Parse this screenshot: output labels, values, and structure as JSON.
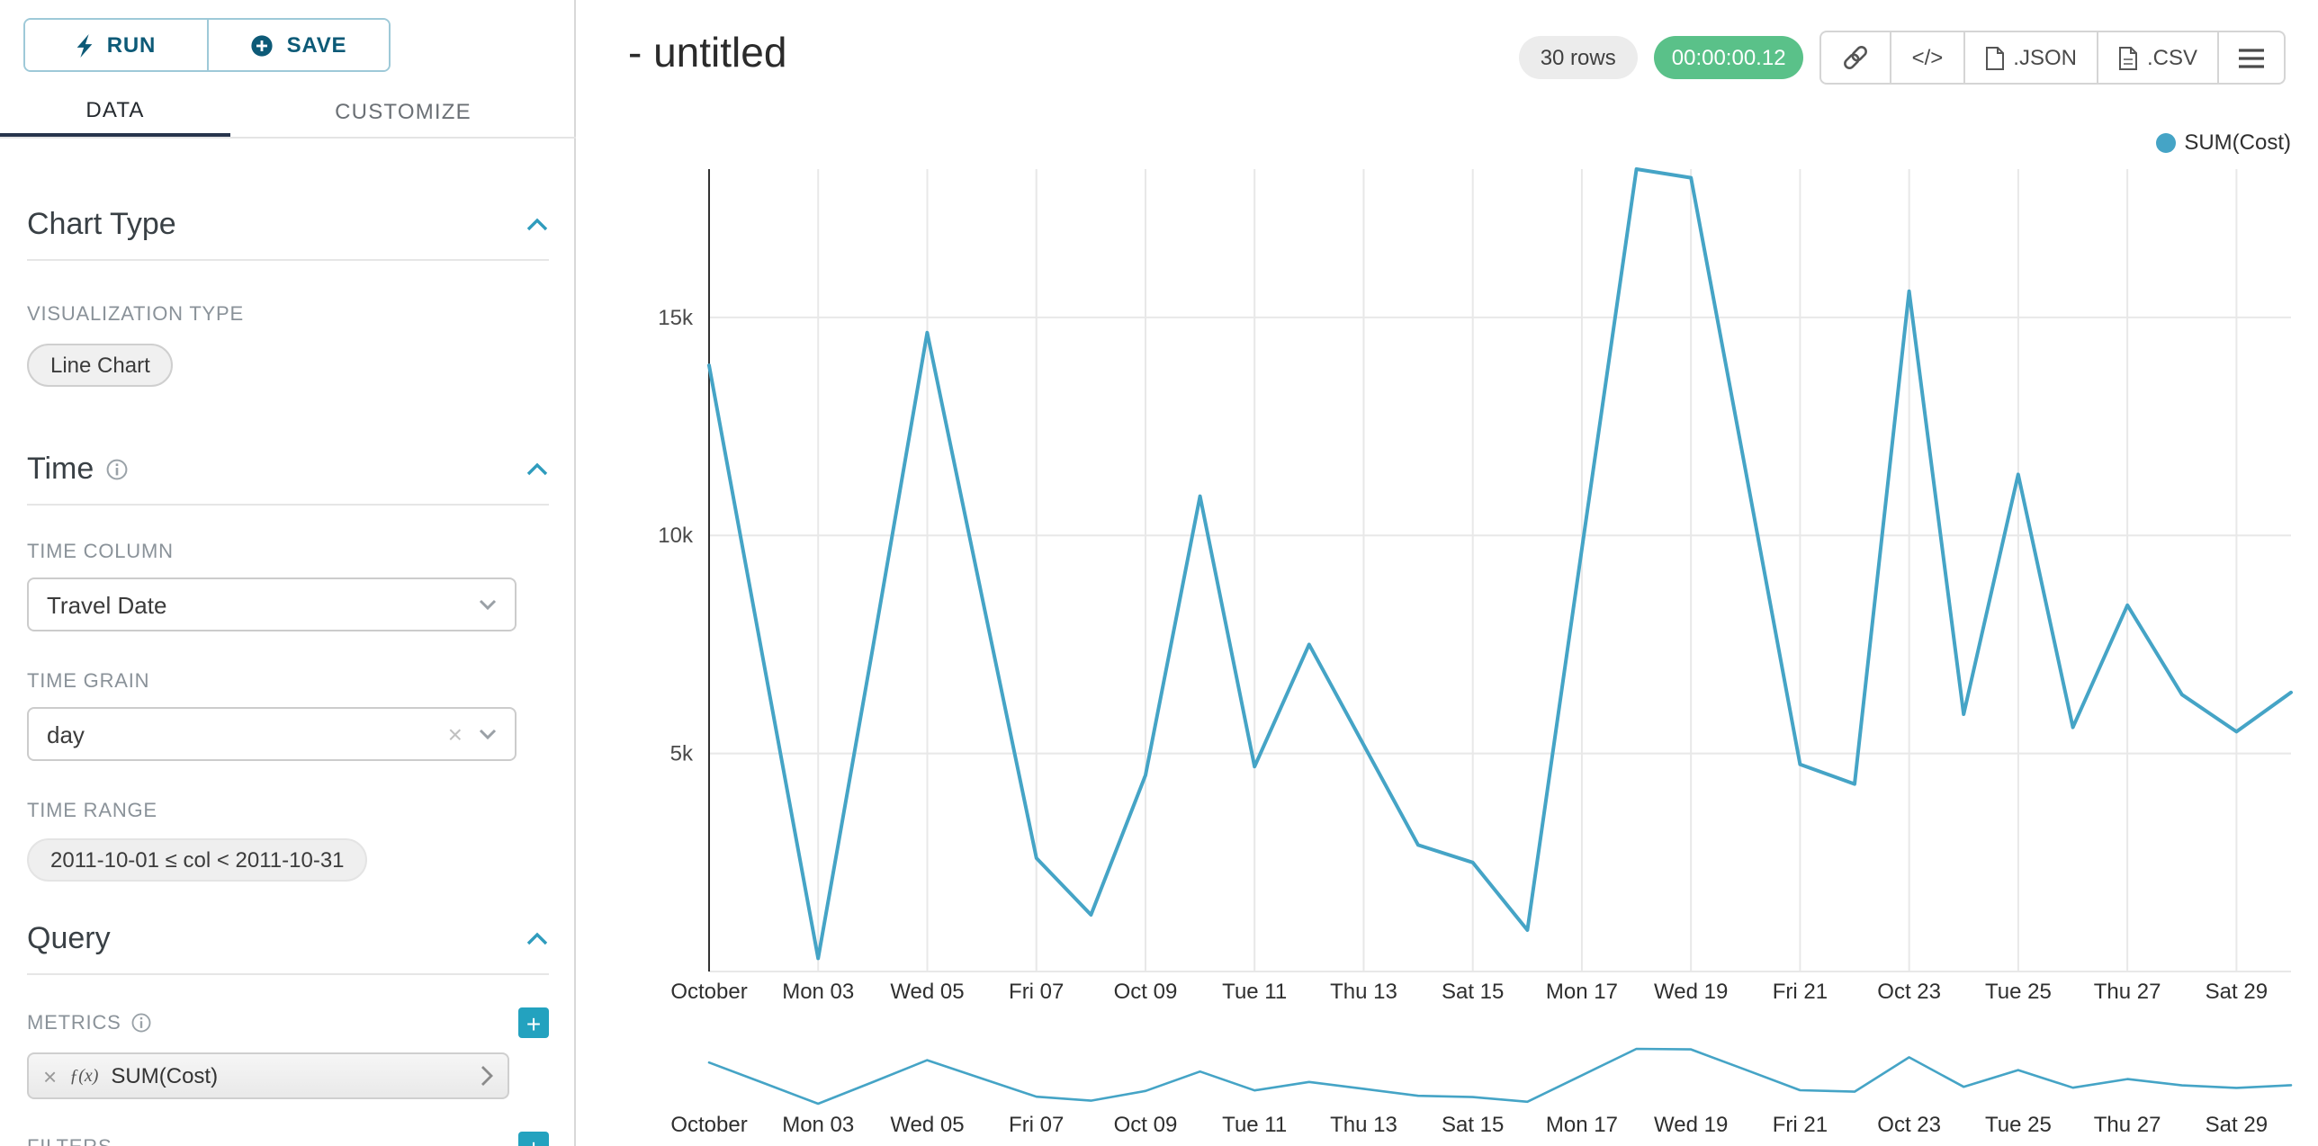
{
  "colors": {
    "accent": "#23a2bf",
    "line": "#45a4c6",
    "timer_green": "#5ac189",
    "run_save_text": "#0d5a77",
    "tab_underline": "#27344c"
  },
  "sidebar": {
    "run_label": "RUN",
    "save_label": "SAVE",
    "tabs": {
      "data": "DATA",
      "customize": "CUSTOMIZE"
    },
    "chart_type": {
      "title": "Chart Type",
      "viz_label": "VISUALIZATION TYPE",
      "viz_value": "Line Chart"
    },
    "time": {
      "title": "Time",
      "column_label": "TIME COLUMN",
      "column_value": "Travel Date",
      "grain_label": "TIME GRAIN",
      "grain_value": "day",
      "range_label": "TIME RANGE",
      "range_value": "2011-10-01 ≤ col < 2011-10-31"
    },
    "query": {
      "title": "Query",
      "metrics_label": "METRICS",
      "metric_fx": "ƒ(x)",
      "metric_value": "SUM(Cost)",
      "filters_label": "FILTERS"
    }
  },
  "header": {
    "title": "- untitled",
    "rows_badge": "30 rows",
    "timer": "00:00:00.12",
    "code_button": "</>",
    "json_button": ".JSON",
    "csv_button": ".CSV"
  },
  "chart": {
    "legend_label": "SUM(Cost)"
  },
  "chart_data": {
    "type": "line",
    "title": "- untitled",
    "xlabel": "",
    "ylabel": "",
    "legend": [
      "SUM(Cost)"
    ],
    "legend_position": "top-right",
    "grid": true,
    "x": [
      "2011-10-01",
      "2011-10-02",
      "2011-10-03",
      "2011-10-04",
      "2011-10-05",
      "2011-10-06",
      "2011-10-07",
      "2011-10-08",
      "2011-10-09",
      "2011-10-10",
      "2011-10-11",
      "2011-10-12",
      "2011-10-13",
      "2011-10-14",
      "2011-10-15",
      "2011-10-16",
      "2011-10-17",
      "2011-10-18",
      "2011-10-19",
      "2011-10-20",
      "2011-10-21",
      "2011-10-22",
      "2011-10-23",
      "2011-10-24",
      "2011-10-25",
      "2011-10-26",
      "2011-10-27",
      "2011-10-28",
      "2011-10-29",
      "2011-10-30"
    ],
    "series": [
      {
        "name": "SUM(Cost)",
        "values": [
          13900,
          7100,
          300,
          7400,
          14650,
          8600,
          2600,
          1300,
          4500,
          10900,
          4700,
          7500,
          5200,
          2900,
          2500,
          950,
          9700,
          18400,
          18200,
          11500,
          4750,
          4300,
          15600,
          5900,
          11400,
          5600,
          8400,
          6350,
          5500,
          6400
        ]
      }
    ],
    "x_tick_labels": [
      "October",
      "Mon 03",
      "Wed 05",
      "Fri 07",
      "Oct 09",
      "Tue 11",
      "Thu 13",
      "Sat 15",
      "Mon 17",
      "Wed 19",
      "Fri 21",
      "Oct 23",
      "Tue 25",
      "Thu 27",
      "Sat 29"
    ],
    "x_tick_every": 2,
    "y_ticks": [
      5000,
      10000,
      15000
    ],
    "y_tick_labels": [
      "5k",
      "10k",
      "15k"
    ],
    "ylim": [
      0,
      18400
    ],
    "line_color": "#45a4c6",
    "has_range_brush": true
  }
}
